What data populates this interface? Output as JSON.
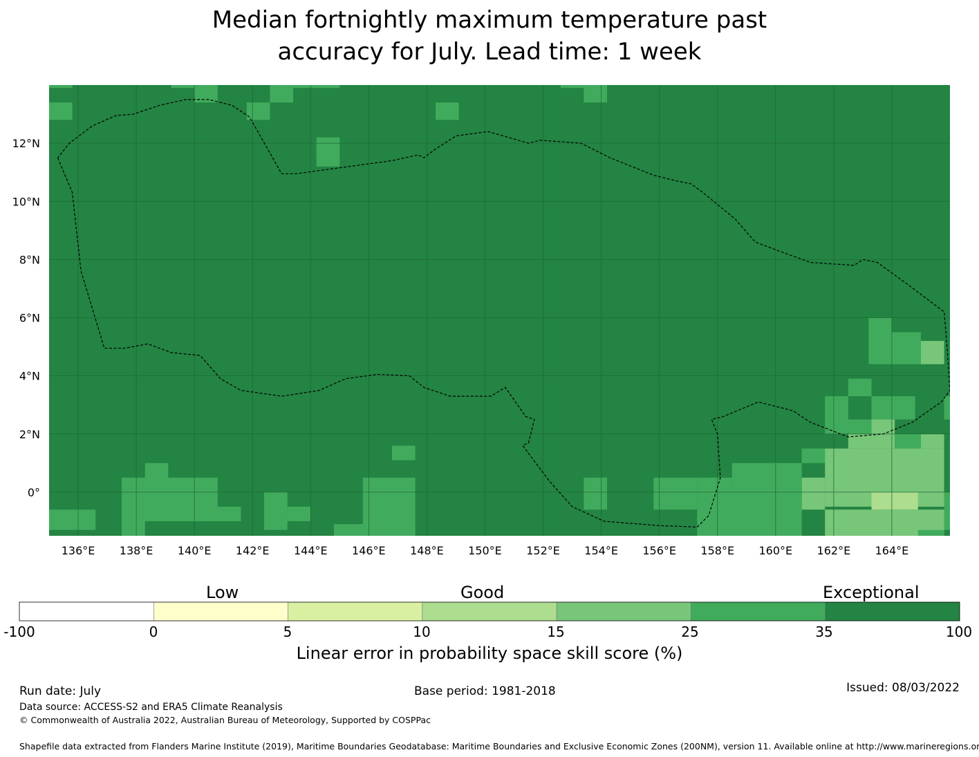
{
  "title_line1": "Median fortnightly maximum temperature past",
  "title_line2": "accuracy for July. Lead time: 1 week",
  "map": {
    "lon_range": [
      135,
      166
    ],
    "lat_range": [
      -1.5,
      14
    ],
    "lon_ticks": [
      "136°E",
      "138°E",
      "140°E",
      "142°E",
      "144°E",
      "146°E",
      "148°E",
      "150°E",
      "152°E",
      "154°E",
      "156°E",
      "158°E",
      "160°E",
      "162°E",
      "164°E"
    ],
    "lat_ticks": [
      "12°N",
      "10°N",
      "8°N",
      "6°N",
      "4°N",
      "2°N",
      "0°"
    ],
    "background_class": 6,
    "patches": [
      {
        "lon": [
          135,
          135.8
        ],
        "lat": [
          13.9,
          14.0
        ],
        "cls": 5
      },
      {
        "lon": [
          135,
          135.8
        ],
        "lat": [
          12.8,
          13.4
        ],
        "cls": 5
      },
      {
        "lon": [
          139.2,
          140.0
        ],
        "lat": [
          13.9,
          14.0
        ],
        "cls": 5
      },
      {
        "lon": [
          140.0,
          140.8
        ],
        "lat": [
          13.4,
          14.0
        ],
        "cls": 5
      },
      {
        "lon": [
          141.8,
          142.6
        ],
        "lat": [
          12.8,
          13.4
        ],
        "cls": 5
      },
      {
        "lon": [
          142.6,
          143.4
        ],
        "lat": [
          13.4,
          14.0
        ],
        "cls": 5
      },
      {
        "lon": [
          143.4,
          144.2
        ],
        "lat": [
          13.9,
          14.0
        ],
        "cls": 5
      },
      {
        "lon": [
          144.2,
          145.0
        ],
        "lat": [
          11.2,
          12.2
        ],
        "cls": 5
      },
      {
        "lon": [
          144.2,
          145.0
        ],
        "lat": [
          13.9,
          14.0
        ],
        "cls": 5
      },
      {
        "lon": [
          148.3,
          149.1
        ],
        "lat": [
          12.8,
          13.4
        ],
        "cls": 5
      },
      {
        "lon": [
          152.6,
          153.4
        ],
        "lat": [
          13.9,
          14.0
        ],
        "cls": 5
      },
      {
        "lon": [
          153.4,
          154.2
        ],
        "lat": [
          13.4,
          14.0
        ],
        "cls": 5
      },
      {
        "lon": [
          163.2,
          164.0
        ],
        "lat": [
          4.4,
          6.0
        ],
        "cls": 5
      },
      {
        "lon": [
          164.0,
          165.0
        ],
        "lat": [
          4.4,
          5.5
        ],
        "cls": 5
      },
      {
        "lon": [
          165.0,
          165.8
        ],
        "lat": [
          4.4,
          5.2
        ],
        "cls": 4
      },
      {
        "lon": [
          161.7,
          162.5
        ],
        "lat": [
          2.0,
          3.3
        ],
        "cls": 5
      },
      {
        "lon": [
          162.5,
          163.3
        ],
        "lat": [
          3.3,
          3.9
        ],
        "cls": 5
      },
      {
        "lon": [
          163.3,
          164.8
        ],
        "lat": [
          2.5,
          3.3
        ],
        "cls": 5
      },
      {
        "lon": [
          162.5,
          163.3
        ],
        "lat": [
          2.0,
          2.5
        ],
        "cls": 5
      },
      {
        "lon": [
          163.3,
          164.1
        ],
        "lat": [
          1.5,
          2.5
        ],
        "cls": 4
      },
      {
        "lon": [
          162.5,
          163.3
        ],
        "lat": [
          1.5,
          2.0
        ],
        "cls": 4
      },
      {
        "lon": [
          164.1,
          165.0
        ],
        "lat": [
          1.5,
          2.0
        ],
        "cls": 5
      },
      {
        "lon": [
          165.0,
          165.8
        ],
        "lat": [
          1.5,
          2.0
        ],
        "cls": 4
      },
      {
        "lon": [
          165.8,
          166.0
        ],
        "lat": [
          2.5,
          3.3
        ],
        "cls": 5
      },
      {
        "lon": [
          160.9,
          161.7
        ],
        "lat": [
          1.0,
          1.5
        ],
        "cls": 5
      },
      {
        "lon": [
          161.7,
          165.8
        ],
        "lat": [
          -0.5,
          1.5
        ],
        "cls": 4
      },
      {
        "lon": [
          160.9,
          161.7
        ],
        "lat": [
          -0.6,
          0.5
        ],
        "cls": 4
      },
      {
        "lon": [
          163.3,
          164.9
        ],
        "lat": [
          -0.6,
          0.0
        ],
        "cls": 3
      },
      {
        "lon": [
          161.7,
          165.8
        ],
        "lat": [
          -1.5,
          -0.6
        ],
        "cls": 4
      },
      {
        "lon": [
          158.5,
          160.9
        ],
        "lat": [
          -1.5,
          1.0
        ],
        "cls": 5
      },
      {
        "lon": [
          157.3,
          158.5
        ],
        "lat": [
          -1.5,
          0.5
        ],
        "cls": 5
      },
      {
        "lon": [
          155.8,
          157.3
        ],
        "lat": [
          -0.6,
          0.5
        ],
        "cls": 5
      },
      {
        "lon": [
          153.4,
          154.2
        ],
        "lat": [
          -0.6,
          0.5
        ],
        "cls": 5
      },
      {
        "lon": [
          165.8,
          166.0
        ],
        "lat": [
          -1.3,
          0.0
        ],
        "cls": 5
      },
      {
        "lon": [
          164.9,
          165.8
        ],
        "lat": [
          -1.5,
          -1.3
        ],
        "cls": 5
      },
      {
        "lon": [
          158.5,
          160.3
        ],
        "lat": [
          -1.5,
          0.0
        ],
        "cls": 5
      },
      {
        "lon": [
          146.8,
          147.6
        ],
        "lat": [
          1.1,
          1.6
        ],
        "cls": 5
      },
      {
        "lon": [
          145.8,
          147.6
        ],
        "lat": [
          -1.5,
          0.5
        ],
        "cls": 5
      },
      {
        "lon": [
          138.3,
          139.1
        ],
        "lat": [
          0.0,
          1.0
        ],
        "cls": 5
      },
      {
        "lon": [
          137.5,
          140.8
        ],
        "lat": [
          -1.0,
          0.5
        ],
        "cls": 5
      },
      {
        "lon": [
          137.5,
          138.3
        ],
        "lat": [
          -1.5,
          -0.5
        ],
        "cls": 5
      },
      {
        "lon": [
          139.1,
          141.6
        ],
        "lat": [
          -1.0,
          -0.5
        ],
        "cls": 5
      },
      {
        "lon": [
          142.4,
          143.2
        ],
        "lat": [
          -1.3,
          0.0
        ],
        "cls": 5
      },
      {
        "lon": [
          143.2,
          144.0
        ],
        "lat": [
          -1.0,
          -0.5
        ],
        "cls": 5
      },
      {
        "lon": [
          135.0,
          136.6
        ],
        "lat": [
          -1.3,
          -0.6
        ],
        "cls": 5
      },
      {
        "lon": [
          144.8,
          147.6
        ],
        "lat": [
          -1.5,
          -1.1
        ],
        "cls": 5
      }
    ],
    "eez": [
      [
        135.3,
        11.5
      ],
      [
        135.8,
        10.3
      ],
      [
        136.1,
        7.6
      ],
      [
        136.9,
        4.95
      ],
      [
        137.6,
        4.95
      ],
      [
        138.4,
        5.1
      ],
      [
        139.2,
        4.8
      ],
      [
        140.2,
        4.7
      ],
      [
        140.9,
        3.9
      ],
      [
        141.6,
        3.5
      ],
      [
        143.0,
        3.3
      ],
      [
        144.3,
        3.5
      ],
      [
        145.2,
        3.9
      ],
      [
        146.3,
        4.05
      ],
      [
        147.4,
        4.0
      ],
      [
        147.9,
        3.6
      ],
      [
        148.8,
        3.3
      ],
      [
        150.2,
        3.3
      ],
      [
        150.7,
        3.6
      ],
      [
        151.4,
        2.6
      ],
      [
        151.7,
        2.5
      ],
      [
        151.5,
        1.7
      ],
      [
        151.3,
        1.6
      ],
      [
        152.2,
        0.4
      ],
      [
        153.0,
        -0.5
      ],
      [
        154.1,
        -1.0
      ],
      [
        156.0,
        -1.15
      ],
      [
        157.3,
        -1.2
      ],
      [
        157.7,
        -0.8
      ],
      [
        158.1,
        0.5
      ],
      [
        158.0,
        2.0
      ],
      [
        157.8,
        2.5
      ],
      [
        158.2,
        2.6
      ],
      [
        159.4,
        3.1
      ],
      [
        160.6,
        2.8
      ],
      [
        161.2,
        2.4
      ],
      [
        162.5,
        1.9
      ],
      [
        163.7,
        2.0
      ],
      [
        164.7,
        2.4
      ],
      [
        165.7,
        3.1
      ],
      [
        166.0,
        3.5
      ],
      [
        165.9,
        5.0
      ],
      [
        165.8,
        6.2
      ],
      [
        164.6,
        7.1
      ],
      [
        163.5,
        7.9
      ],
      [
        163.0,
        8.0
      ],
      [
        162.7,
        7.8
      ],
      [
        161.2,
        7.9
      ],
      [
        160.1,
        8.3
      ],
      [
        159.3,
        8.6
      ],
      [
        158.6,
        9.4
      ],
      [
        157.5,
        10.3
      ],
      [
        157.1,
        10.6
      ],
      [
        156.6,
        10.7
      ],
      [
        155.8,
        10.9
      ],
      [
        154.3,
        11.5
      ],
      [
        153.3,
        12.0
      ],
      [
        151.9,
        12.1
      ],
      [
        151.5,
        12.0
      ],
      [
        150.1,
        12.4
      ],
      [
        149.0,
        12.25
      ],
      [
        148.3,
        11.8
      ],
      [
        147.9,
        11.5
      ],
      [
        147.7,
        11.6
      ],
      [
        146.8,
        11.4
      ],
      [
        143.5,
        10.95
      ],
      [
        143.0,
        10.95
      ],
      [
        141.9,
        12.9
      ],
      [
        141.3,
        13.3
      ],
      [
        140.5,
        13.5
      ],
      [
        139.7,
        13.5
      ],
      [
        138.8,
        13.3
      ],
      [
        137.9,
        13.0
      ],
      [
        137.3,
        12.95
      ],
      [
        136.5,
        12.6
      ],
      [
        135.7,
        12.0
      ],
      [
        135.3,
        11.5
      ]
    ]
  },
  "colorbar": {
    "colors": [
      "#ffffff",
      "#ffffcc",
      "#d9f0a3",
      "#addd8e",
      "#78c679",
      "#41ab5d",
      "#238443"
    ],
    "ticks": [
      "-100",
      "0",
      "5",
      "10",
      "15",
      "25",
      "35",
      "100"
    ],
    "category_labels": [
      "Low",
      "Good",
      "Exceptional"
    ],
    "title": "Linear error in probability space skill score (%)"
  },
  "footer": {
    "run_date": "Run date: July",
    "base_period": "Base period: 1981-2018",
    "issued": "Issued: 08/03/2022",
    "data_source": "Data source: ACCESS-S2 and ERA5 Climate Reanalysis",
    "copyright": "© Commonwealth of Australia 2022, Australian Bureau of Meteorology, Supported by COSPPac",
    "shapefile_credit": "Shapefile data extracted from Flanders Marine Institute (2019), Maritime Boundaries Geodatabase: Maritime Boundaries and Exclusive Economic Zones (200NM), version 11. Available online at http://www.marineregions.org/."
  }
}
